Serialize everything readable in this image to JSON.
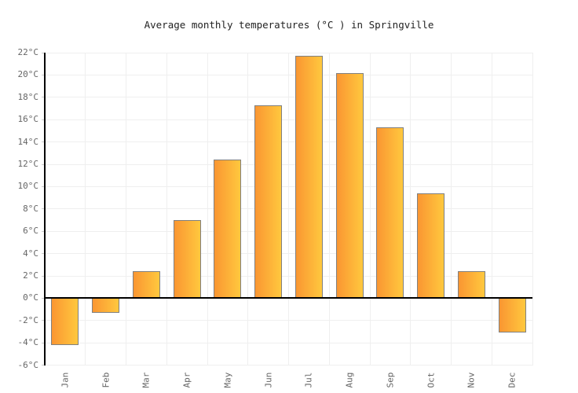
{
  "title": "Average monthly temperatures (°C ) in Springville",
  "chart_data": {
    "type": "bar",
    "title": "Average monthly temperatures (°C ) in Springville",
    "categories": [
      "Jan",
      "Feb",
      "Mar",
      "Apr",
      "May",
      "Jun",
      "Jul",
      "Aug",
      "Sep",
      "Oct",
      "Nov",
      "Dec"
    ],
    "values": [
      -4.2,
      -1.3,
      2.4,
      7.0,
      12.4,
      17.3,
      21.7,
      20.2,
      15.3,
      9.4,
      2.4,
      -3.1
    ],
    "xlabel": "",
    "ylabel": "",
    "ylim": [
      -6,
      22
    ],
    "ytick_step": 2,
    "ytick_labels": [
      "-6°C",
      "-4°C",
      "-2°C",
      "0°C",
      "2°C",
      "4°C",
      "6°C",
      "8°C",
      "10°C",
      "12°C",
      "14°C",
      "16°C",
      "18°C",
      "20°C",
      "22°C"
    ],
    "grid": true,
    "legend": "none",
    "colors": {
      "bar_gradient_left": "#FA9632",
      "bar_gradient_right": "#FFC83E",
      "bar_border": "#808080",
      "axis": "#000000",
      "gridline": "#efefef",
      "tick": "#cccccc",
      "label": "#666666",
      "title": "#222222",
      "background": "#ffffff"
    }
  }
}
